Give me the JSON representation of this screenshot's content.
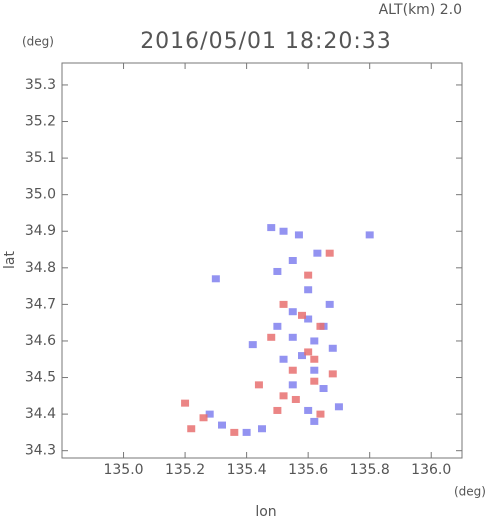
{
  "chart_data": {
    "type": "scatter",
    "title": "2016/05/01 18:20:33",
    "annotation": "ALT(km) 2.0",
    "y_unit": "(deg)",
    "x_unit": "(deg)",
    "xlabel": "lon",
    "ylabel": "lat",
    "xlim": [
      134.8,
      136.1
    ],
    "ylim": [
      34.28,
      35.36
    ],
    "xticks": [
      {
        "value": 135.0,
        "label": "135.0"
      },
      135.2,
      135.4,
      135.6,
      135.8,
      {
        "value": 136.0,
        "label": "136.0"
      }
    ],
    "yticks": [
      34.3,
      34.4,
      34.5,
      34.6,
      34.7,
      34.8,
      34.9,
      {
        "value": 35.0,
        "label": "35.0"
      },
      35.1,
      35.2,
      35.3
    ],
    "series": [
      {
        "color": "#8080ee",
        "x": [
          135.52,
          135.48,
          135.57,
          135.8,
          135.63,
          135.55,
          135.5,
          135.6,
          135.55,
          135.6,
          135.65,
          135.5,
          135.55,
          135.62,
          135.58,
          135.68,
          135.62,
          135.65,
          135.55,
          135.7,
          135.6,
          135.62,
          135.45,
          135.4,
          135.28,
          135.32,
          135.42,
          135.67,
          135.52,
          135.3
        ],
        "values": [
          34.9,
          34.91,
          34.89,
          34.89,
          34.84,
          34.82,
          34.79,
          34.74,
          34.68,
          34.66,
          34.64,
          34.64,
          34.61,
          34.6,
          34.56,
          34.58,
          34.52,
          34.47,
          34.48,
          34.42,
          34.41,
          34.38,
          34.36,
          34.35,
          34.4,
          34.37,
          34.59,
          34.7,
          34.55,
          34.77
        ]
      },
      {
        "color": "#e87070",
        "x": [
          135.67,
          135.6,
          135.52,
          135.58,
          135.64,
          135.48,
          135.6,
          135.44,
          135.52,
          135.62,
          135.56,
          135.5,
          135.2,
          135.22,
          135.26,
          135.36,
          135.64,
          135.55,
          135.68,
          135.62
        ],
        "values": [
          34.84,
          34.78,
          34.7,
          34.67,
          34.64,
          34.61,
          34.57,
          34.48,
          34.45,
          34.49,
          34.44,
          34.41,
          34.43,
          34.36,
          34.39,
          34.35,
          34.4,
          34.52,
          34.51,
          34.55
        ]
      }
    ]
  }
}
